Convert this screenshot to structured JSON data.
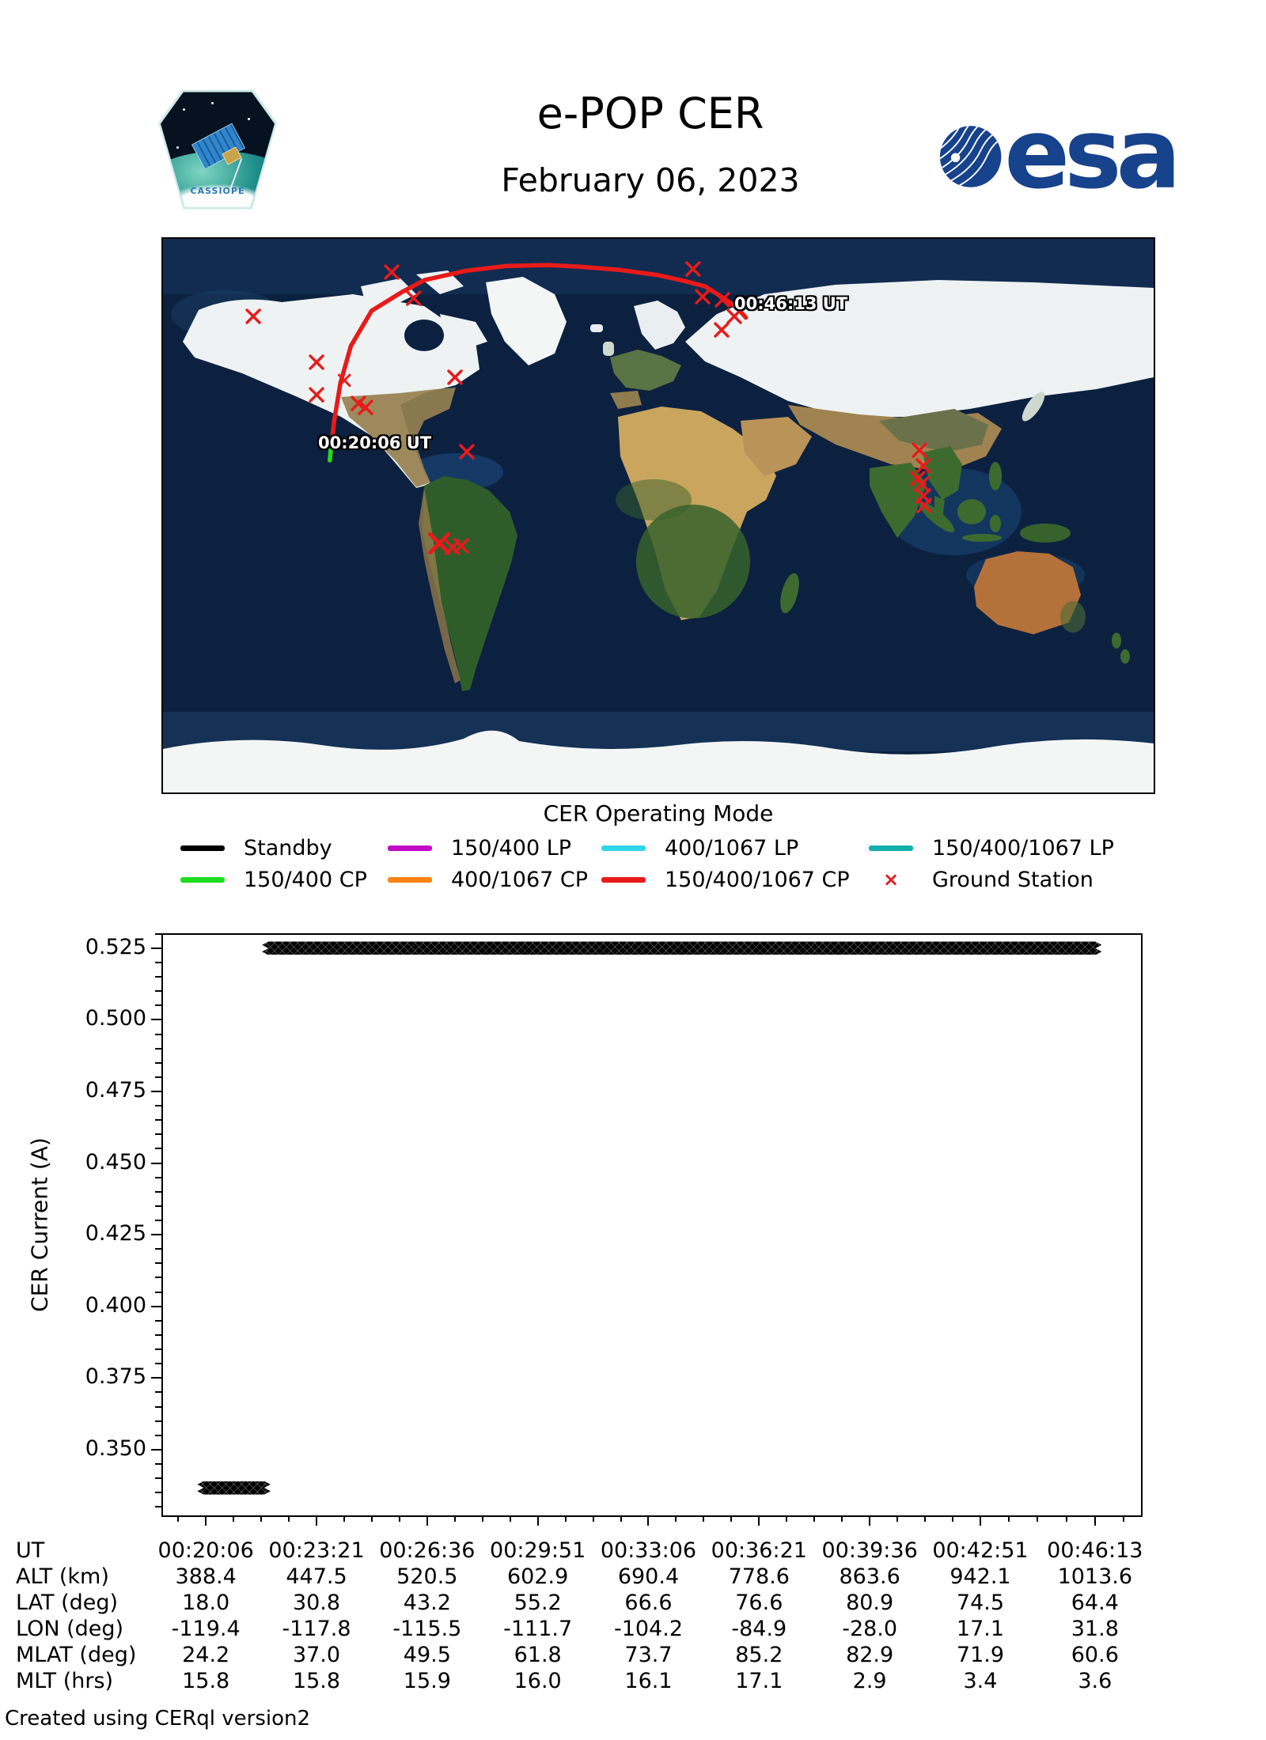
{
  "header": {
    "title": "e-POP CER",
    "date": "February 06, 2023",
    "patch_label": "CASSIOPE",
    "esa_text": "esa"
  },
  "map": {
    "start_label": "00:20:06 UT",
    "end_label": "00:46:13 UT",
    "track_color": "#e81a1a",
    "start_segment_color": "#1ddd1d",
    "station_color": "#e81a1a",
    "track_lonlat": [
      [
        -119.4,
        18.0
      ],
      [
        -117.8,
        30.8
      ],
      [
        -115.5,
        43.2
      ],
      [
        -111.7,
        55.2
      ],
      [
        -104.2,
        66.6
      ],
      [
        -93.0,
        72.8
      ],
      [
        -84.9,
        76.6
      ],
      [
        -70.0,
        79.6
      ],
      [
        -55.0,
        81.2
      ],
      [
        -40.0,
        81.5
      ],
      [
        -28.0,
        80.9
      ],
      [
        -14.0,
        79.9
      ],
      [
        0.0,
        78.2
      ],
      [
        10.0,
        76.2
      ],
      [
        17.1,
        74.5
      ],
      [
        25.0,
        70.0
      ],
      [
        29.0,
        67.2
      ],
      [
        31.8,
        64.4
      ]
    ],
    "start_segment_lonlat": [
      [
        -119.4,
        18.0
      ],
      [
        -118.8,
        23.8
      ]
    ],
    "ground_stations_lonlat": [
      [
        -147.2,
        64.8,
        1
      ],
      [
        -96.9,
        79.2,
        1
      ],
      [
        -88.9,
        70.7,
        1
      ],
      [
        -124.2,
        49.9,
        1
      ],
      [
        -114.1,
        44.0,
        0.85
      ],
      [
        -124.2,
        39.3,
        1
      ],
      [
        -109.0,
        36.5,
        1
      ],
      [
        -106.4,
        35.2,
        1
      ],
      [
        -73.9,
        45.0,
        1
      ],
      [
        -69.6,
        20.8,
        1
      ],
      [
        -79.6,
        -9.0,
        1.45
      ],
      [
        -74.8,
        -10.3,
        1
      ],
      [
        -71.6,
        -9.8,
        1
      ],
      [
        12.6,
        80.2,
        1
      ],
      [
        16.1,
        71.2,
        1
      ],
      [
        23.3,
        70.2,
        1
      ],
      [
        27.6,
        64.8,
        1
      ],
      [
        23.0,
        60.4,
        1
      ],
      [
        94.9,
        21.3,
        1
      ],
      [
        96.3,
        16.2,
        1
      ],
      [
        94.3,
        12.1,
        1
      ],
      [
        95.7,
        10.3,
        1
      ],
      [
        96.3,
        6.4,
        1
      ],
      [
        96.6,
        3.3,
        1
      ]
    ]
  },
  "legend": {
    "title": "CER Operating Mode",
    "rows": [
      [
        {
          "label": "Standby",
          "color": "#000000",
          "type": "line"
        },
        {
          "label": "150/400 LP",
          "color": "#c408c8",
          "type": "line"
        },
        {
          "label": "400/1067 LP",
          "color": "#30d5e8",
          "type": "line"
        },
        {
          "label": "150/400/1067 LP",
          "color": "#14b0ac",
          "type": "line"
        }
      ],
      [
        {
          "label": "150/400 CP",
          "color": "#1ddd1d",
          "type": "line"
        },
        {
          "label": "400/1067 CP",
          "color": "#ff8214",
          "type": "line"
        },
        {
          "label": "150/400/1067 CP",
          "color": "#e81a1a",
          "type": "line"
        },
        {
          "label": "Ground Station",
          "color": "#e81a1a",
          "type": "marker",
          "marker": "×"
        }
      ]
    ]
  },
  "chart_data": {
    "type": "scatter",
    "marker": "x",
    "marker_color": "#000000",
    "title": "",
    "xlabel": "",
    "ylabel": "CER Current (A)",
    "ylim": [
      0.3276,
      0.5302
    ],
    "yticks": [
      0.35,
      0.375,
      0.4,
      0.425,
      0.45,
      0.475,
      0.5,
      0.525
    ],
    "y_minor_step": 0.005,
    "xlim_s": [
      -78.35,
      1645.35
    ],
    "xticks_s": [
      0,
      195,
      390,
      585,
      780,
      975,
      1170,
      1365,
      1567
    ],
    "x_minor_per_interval": 3,
    "series": [
      {
        "name": "standby-high-band",
        "t_start_s": 99,
        "t_end_s": 1579,
        "current_A": 0.5251
      },
      {
        "name": "startup-low-band",
        "t_start_s": -15,
        "t_end_s": 114,
        "current_A": 0.3368
      }
    ],
    "grid": false,
    "legend_position": "none"
  },
  "table": {
    "rows": [
      {
        "label": "UT",
        "values": [
          "00:20:06",
          "00:23:21",
          "00:26:36",
          "00:29:51",
          "00:33:06",
          "00:36:21",
          "00:39:36",
          "00:42:51",
          "00:46:13"
        ]
      },
      {
        "label": "ALT (km)",
        "values": [
          "388.4",
          "447.5",
          "520.5",
          "602.9",
          "690.4",
          "778.6",
          "863.6",
          "942.1",
          "1013.6"
        ]
      },
      {
        "label": "LAT (deg)",
        "values": [
          "18.0",
          "30.8",
          "43.2",
          "55.2",
          "66.6",
          "76.6",
          "80.9",
          "74.5",
          "64.4"
        ]
      },
      {
        "label": "LON (deg)",
        "values": [
          "-119.4",
          "-117.8",
          "-115.5",
          "-111.7",
          "-104.2",
          "-84.9",
          "-28.0",
          "17.1",
          "31.8"
        ]
      },
      {
        "label": "MLAT (deg)",
        "values": [
          "24.2",
          "37.0",
          "49.5",
          "61.8",
          "73.7",
          "85.2",
          "82.9",
          "71.9",
          "60.6"
        ]
      },
      {
        "label": "MLT (hrs)",
        "values": [
          "15.8",
          "15.8",
          "15.9",
          "16.0",
          "16.1",
          "17.1",
          "2.9",
          "3.4",
          "3.6"
        ]
      }
    ]
  },
  "footer": {
    "credit": "Created using CERql version2"
  }
}
